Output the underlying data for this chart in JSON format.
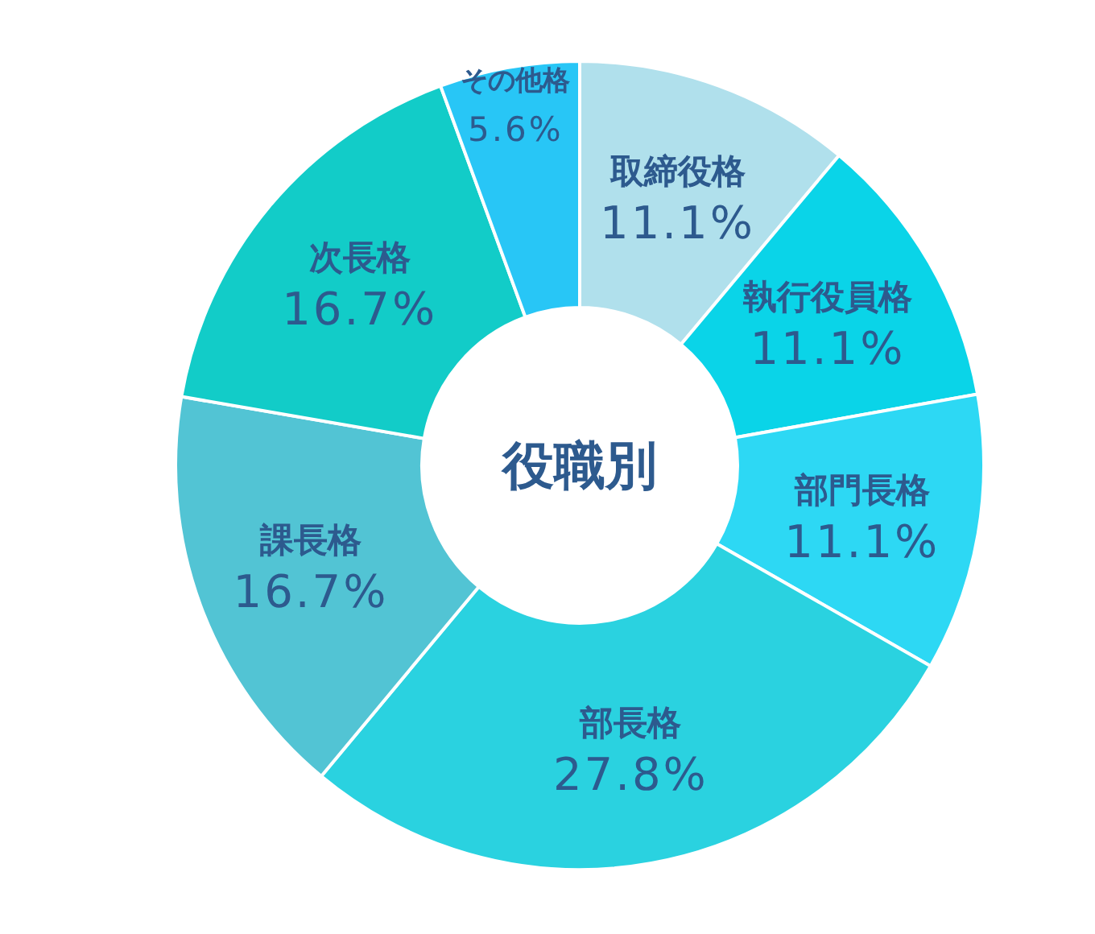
{
  "chart_data": {
    "type": "donut",
    "title": "役職別",
    "categories": [
      "取締役格",
      "執行役員格",
      "部門長格",
      "部長格",
      "課長格",
      "次長格",
      "その他格"
    ],
    "values": [
      11.1,
      11.1,
      11.1,
      27.8,
      16.7,
      16.7,
      5.6
    ],
    "value_labels": [
      "11.1%",
      "11.1%",
      "11.1%",
      "27.8%",
      "16.7%",
      "16.7%",
      "5.6%"
    ],
    "colors": [
      "#b0e0ec",
      "#0ad4e8",
      "#2dd8f4",
      "#2ad2e0",
      "#52c4d4",
      "#12ccc8",
      "#28c6f6"
    ]
  }
}
